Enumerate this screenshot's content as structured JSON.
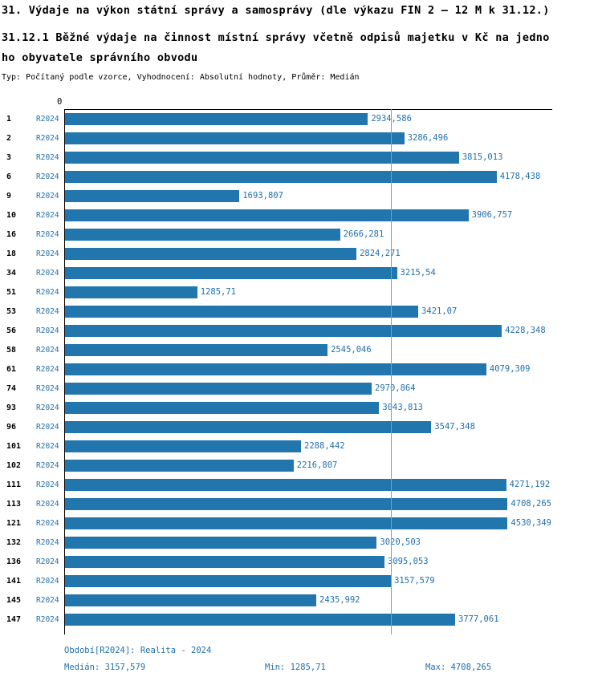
{
  "header": {
    "title": "31. Výdaje na výkon státní správy a samosprávy (dle výkazu FIN 2 – 12 M k 31.12.)",
    "subtitle_line1": "31.12.1 Běžné výdaje na činnost místní správy včetně odpisů majetku v Kč na jedno",
    "subtitle_line2": "ho obyvatele správního obvodu",
    "meta": "Typ: Počítaný podle vzorce, Vyhodnocení: Absolutní hodnoty, Průměr: Medián"
  },
  "colors": {
    "accent": "#2176ae",
    "accent_text": "#1f6fad",
    "median_line": "#7f9db9"
  },
  "axis": {
    "zero_label": "0"
  },
  "chart_data": {
    "type": "bar",
    "orientation": "horizontal",
    "title": "31.12.1 Běžné výdaje na činnost místní správy včetně odpisů majetku v Kč na jednoho obyvatele správního obvodu",
    "xlim": [
      0,
      4708.265
    ],
    "median_value": 3157.579,
    "period_label": "R2024",
    "legend_position": "none",
    "grid": false,
    "rows": [
      {
        "id": "1",
        "period": "R2024",
        "value": 2934.586,
        "label": "2934,586"
      },
      {
        "id": "2",
        "period": "R2024",
        "value": 3286.496,
        "label": "3286,496"
      },
      {
        "id": "3",
        "period": "R2024",
        "value": 3815.013,
        "label": "3815,013"
      },
      {
        "id": "6",
        "period": "R2024",
        "value": 4178.438,
        "label": "4178,438"
      },
      {
        "id": "9",
        "period": "R2024",
        "value": 1693.807,
        "label": "1693,807"
      },
      {
        "id": "10",
        "period": "R2024",
        "value": 3906.757,
        "label": "3906,757"
      },
      {
        "id": "16",
        "period": "R2024",
        "value": 2666.281,
        "label": "2666,281"
      },
      {
        "id": "18",
        "period": "R2024",
        "value": 2824.271,
        "label": "2824,271"
      },
      {
        "id": "34",
        "period": "R2024",
        "value": 3215.54,
        "label": "3215,54"
      },
      {
        "id": "51",
        "period": "R2024",
        "value": 1285.71,
        "label": "1285,71"
      },
      {
        "id": "53",
        "period": "R2024",
        "value": 3421.07,
        "label": "3421,07"
      },
      {
        "id": "56",
        "period": "R2024",
        "value": 4228.348,
        "label": "4228,348"
      },
      {
        "id": "58",
        "period": "R2024",
        "value": 2545.046,
        "label": "2545,046"
      },
      {
        "id": "61",
        "period": "R2024",
        "value": 4079.309,
        "label": "4079,309"
      },
      {
        "id": "74",
        "period": "R2024",
        "value": 2970.864,
        "label": "2970,864"
      },
      {
        "id": "93",
        "period": "R2024",
        "value": 3043.813,
        "label": "3043,813"
      },
      {
        "id": "96",
        "period": "R2024",
        "value": 3547.348,
        "label": "3547,348"
      },
      {
        "id": "101",
        "period": "R2024",
        "value": 2288.442,
        "label": "2288,442"
      },
      {
        "id": "102",
        "period": "R2024",
        "value": 2216.807,
        "label": "2216,807"
      },
      {
        "id": "111",
        "period": "R2024",
        "value": 4271.192,
        "label": "4271,192"
      },
      {
        "id": "113",
        "period": "R2024",
        "value": 4708.265,
        "label": "4708,265"
      },
      {
        "id": "121",
        "period": "R2024",
        "value": 4530.349,
        "label": "4530,349"
      },
      {
        "id": "132",
        "period": "R2024",
        "value": 3020.503,
        "label": "3020,503"
      },
      {
        "id": "136",
        "period": "R2024",
        "value": 3095.053,
        "label": "3095,053"
      },
      {
        "id": "141",
        "period": "R2024",
        "value": 3157.579,
        "label": "3157,579"
      },
      {
        "id": "145",
        "period": "R2024",
        "value": 2435.992,
        "label": "2435,992"
      },
      {
        "id": "147",
        "period": "R2024",
        "value": 3777.061,
        "label": "3777,061"
      }
    ]
  },
  "footer": {
    "period_line": "Období[R2024]: Realita - 2024",
    "median": "Medián: 3157,579",
    "min": "Min: 1285,71",
    "max": "Max: 4708,265"
  }
}
